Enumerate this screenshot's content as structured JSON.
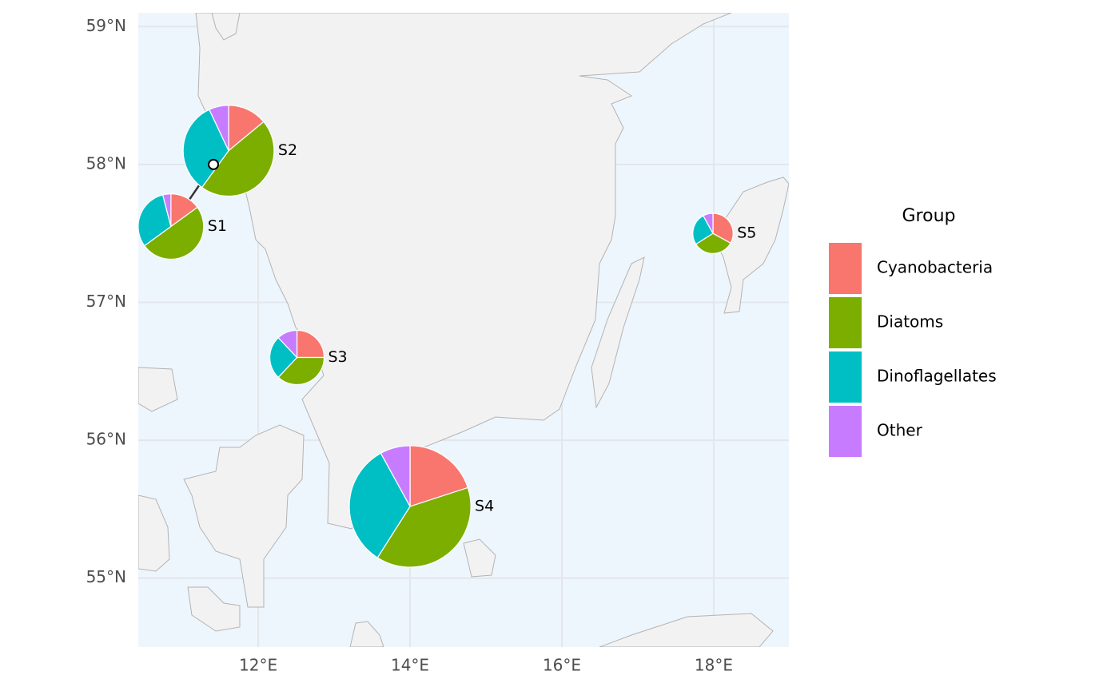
{
  "chart_data": {
    "type": "pie",
    "categories": [
      "S1",
      "S2",
      "S3",
      "S4",
      "S5"
    ],
    "lon": [
      10.85,
      11.61,
      12.51,
      14.0,
      17.99
    ],
    "lat": [
      57.55,
      58.1,
      56.6,
      55.52,
      57.5
    ],
    "size": [
      29,
      56,
      20,
      100,
      11
    ],
    "anchor_lon": [
      11.41,
      null,
      null,
      null,
      null
    ],
    "anchor_lat": [
      58.0,
      null,
      null,
      null,
      null
    ],
    "series": [
      {
        "name": "Cyanobacteria",
        "color": "#F8766D",
        "values": [
          15,
          14,
          25,
          20,
          33
        ]
      },
      {
        "name": "Diatoms",
        "color": "#7CAE00",
        "values": [
          50,
          46,
          37,
          39,
          33
        ]
      },
      {
        "name": "Dinoflagellates",
        "color": "#00BFC4",
        "values": [
          31,
          33,
          26,
          33,
          26
        ]
      },
      {
        "name": "Other",
        "color": "#C77CFF",
        "values": [
          4,
          7,
          12,
          8,
          8
        ]
      }
    ],
    "legend_title": "Group",
    "legend": "right",
    "grid": true,
    "xlim": [
      10.42,
      18.99
    ],
    "ylim": [
      54.5,
      59.1
    ],
    "xticks": [
      {
        "value": 12,
        "label": "12°E"
      },
      {
        "value": 14,
        "label": "14°E"
      },
      {
        "value": 16,
        "label": "16°E"
      },
      {
        "value": 18,
        "label": "18°E"
      }
    ],
    "yticks": [
      {
        "value": 55,
        "label": "55°N"
      },
      {
        "value": 56,
        "label": "56°N"
      },
      {
        "value": 57,
        "label": "57°N"
      },
      {
        "value": 58,
        "label": "58°N"
      },
      {
        "value": 59,
        "label": "59°N"
      }
    ]
  }
}
